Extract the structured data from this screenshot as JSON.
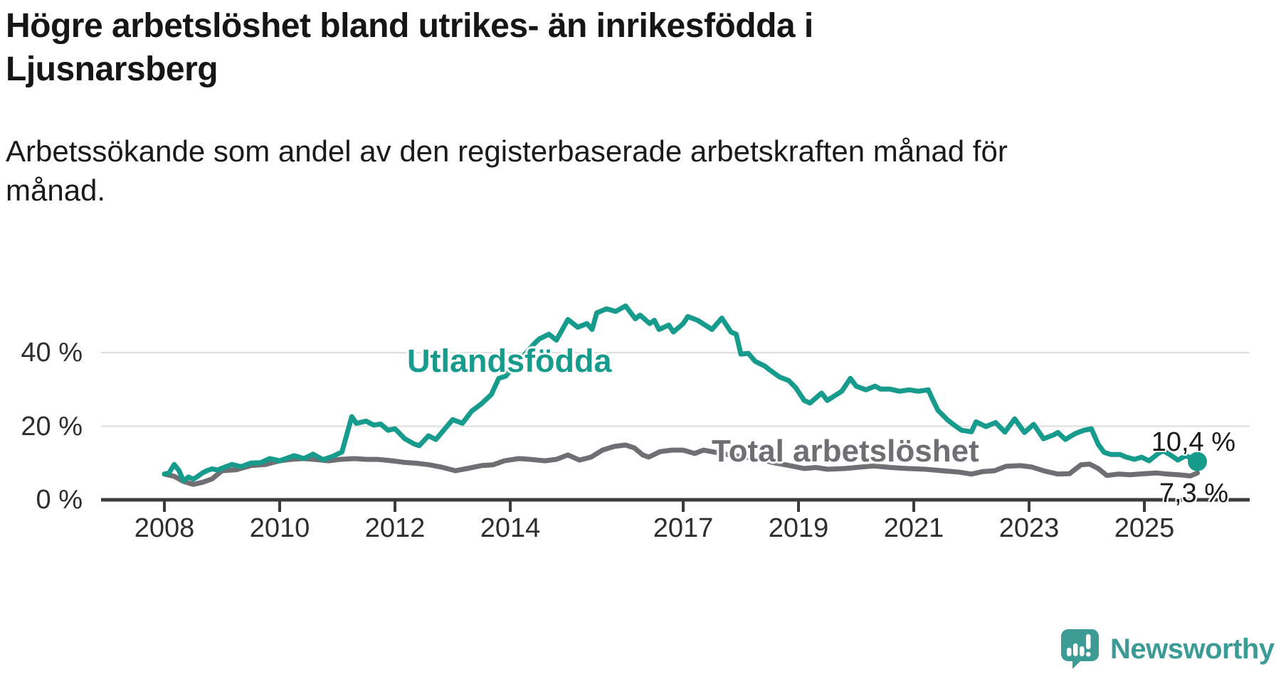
{
  "title": {
    "line1": "Högre arbetslöshet bland utrikes- än inrikesfödda i",
    "line2": "Ljusnarsberg"
  },
  "subtitle": {
    "line1": "Arbetssökande som andel av den registerbaserade arbetskraften månad för",
    "line2": "månad."
  },
  "branding": {
    "name": "Newsworthy",
    "icon": "speech-bubble-bar-chart-icon",
    "color": "#3c9c95"
  },
  "chart_data": {
    "type": "line",
    "title": "Högre arbetslöshet bland utrikes- än inrikesfödda i Ljusnarsberg",
    "xlabel": "",
    "ylabel": "Arbetssökande som andel av den registerbaserade arbetskraften",
    "unit": "%",
    "grid": "horizontal",
    "legend": "inline-labels",
    "x_range": [
      2007.9,
      2026.3
    ],
    "y_range": [
      0,
      56
    ],
    "x_axis": {
      "ticks": [
        {
          "value": 2008,
          "label": "2008"
        },
        {
          "value": 2010,
          "label": "2010"
        },
        {
          "value": 2012,
          "label": "2012"
        },
        {
          "value": 2014,
          "label": "2014"
        },
        {
          "value": 2017,
          "label": "2017"
        },
        {
          "value": 2019,
          "label": "2019"
        },
        {
          "value": 2021,
          "label": "2021"
        },
        {
          "value": 2023,
          "label": "2023"
        },
        {
          "value": 2025,
          "label": "2025"
        }
      ]
    },
    "y_axis": {
      "ticks": [
        {
          "value": 0,
          "label": "0 %"
        },
        {
          "value": 20,
          "label": "20 %"
        },
        {
          "value": 40,
          "label": "40 %"
        }
      ]
    },
    "series": [
      {
        "name": "Utlandsfödda",
        "color": "#169b8d",
        "end_label": "10,4 %",
        "end_value": 10.4,
        "end_dot": true,
        "points": [
          [
            2008.0,
            7.0
          ],
          [
            2008.08,
            7.3
          ],
          [
            2008.17,
            9.6
          ],
          [
            2008.25,
            8.0
          ],
          [
            2008.33,
            5.2
          ],
          [
            2008.42,
            6.2
          ],
          [
            2008.5,
            5.6
          ],
          [
            2008.58,
            6.4
          ],
          [
            2008.67,
            7.4
          ],
          [
            2008.75,
            8.0
          ],
          [
            2008.83,
            8.4
          ],
          [
            2008.92,
            8.1
          ],
          [
            2009.0,
            8.6
          ],
          [
            2009.17,
            9.6
          ],
          [
            2009.33,
            9.0
          ],
          [
            2009.5,
            10.0
          ],
          [
            2009.67,
            10.1
          ],
          [
            2009.83,
            11.2
          ],
          [
            2010.0,
            10.6
          ],
          [
            2010.25,
            12.0
          ],
          [
            2010.42,
            11.2
          ],
          [
            2010.58,
            12.4
          ],
          [
            2010.75,
            10.9
          ],
          [
            2010.92,
            11.8
          ],
          [
            2011.08,
            13.0
          ],
          [
            2011.25,
            22.6
          ],
          [
            2011.33,
            20.8
          ],
          [
            2011.5,
            21.4
          ],
          [
            2011.63,
            20.3
          ],
          [
            2011.75,
            20.6
          ],
          [
            2011.88,
            18.9
          ],
          [
            2012.0,
            19.3
          ],
          [
            2012.17,
            16.6
          ],
          [
            2012.33,
            15.2
          ],
          [
            2012.42,
            14.7
          ],
          [
            2012.58,
            17.4
          ],
          [
            2012.71,
            16.4
          ],
          [
            2013.0,
            21.8
          ],
          [
            2013.17,
            20.8
          ],
          [
            2013.33,
            24.1
          ],
          [
            2013.5,
            26.1
          ],
          [
            2013.67,
            28.6
          ],
          [
            2013.8,
            33.0
          ],
          [
            2013.92,
            33.6
          ],
          [
            2014.08,
            36.5
          ],
          [
            2014.25,
            39.5
          ],
          [
            2014.42,
            42.5
          ],
          [
            2014.5,
            43.7
          ],
          [
            2014.67,
            45.0
          ],
          [
            2014.8,
            43.4
          ],
          [
            2015.0,
            49.0
          ],
          [
            2015.17,
            46.9
          ],
          [
            2015.33,
            47.9
          ],
          [
            2015.42,
            46.3
          ],
          [
            2015.5,
            50.8
          ],
          [
            2015.67,
            51.9
          ],
          [
            2015.83,
            51.2
          ],
          [
            2016.0,
            52.7
          ],
          [
            2016.17,
            49.2
          ],
          [
            2016.25,
            50.2
          ],
          [
            2016.42,
            47.9
          ],
          [
            2016.5,
            48.8
          ],
          [
            2016.58,
            46.3
          ],
          [
            2016.75,
            47.5
          ],
          [
            2016.83,
            45.6
          ],
          [
            2017.0,
            47.9
          ],
          [
            2017.08,
            49.8
          ],
          [
            2017.25,
            48.8
          ],
          [
            2017.5,
            46.3
          ],
          [
            2017.67,
            49.4
          ],
          [
            2017.83,
            45.6
          ],
          [
            2017.92,
            45.0
          ],
          [
            2018.0,
            39.6
          ],
          [
            2018.13,
            39.8
          ],
          [
            2018.25,
            37.6
          ],
          [
            2018.42,
            36.3
          ],
          [
            2018.5,
            35.3
          ],
          [
            2018.67,
            33.4
          ],
          [
            2018.83,
            32.4
          ],
          [
            2018.95,
            30.5
          ],
          [
            2019.1,
            27.0
          ],
          [
            2019.2,
            26.3
          ],
          [
            2019.4,
            29.0
          ],
          [
            2019.5,
            27.0
          ],
          [
            2019.6,
            28.0
          ],
          [
            2019.75,
            29.5
          ],
          [
            2019.9,
            33.0
          ],
          [
            2020.0,
            30.9
          ],
          [
            2020.17,
            29.9
          ],
          [
            2020.33,
            30.9
          ],
          [
            2020.42,
            30.1
          ],
          [
            2020.58,
            30.1
          ],
          [
            2020.75,
            29.5
          ],
          [
            2020.92,
            29.9
          ],
          [
            2021.08,
            29.5
          ],
          [
            2021.25,
            29.9
          ],
          [
            2021.33,
            27.2
          ],
          [
            2021.42,
            24.3
          ],
          [
            2021.58,
            21.8
          ],
          [
            2021.7,
            20.3
          ],
          [
            2021.83,
            18.9
          ],
          [
            2022.0,
            18.5
          ],
          [
            2022.08,
            21.2
          ],
          [
            2022.25,
            19.9
          ],
          [
            2022.42,
            21.0
          ],
          [
            2022.58,
            18.4
          ],
          [
            2022.75,
            22.0
          ],
          [
            2022.92,
            18.3
          ],
          [
            2023.08,
            20.5
          ],
          [
            2023.25,
            16.6
          ],
          [
            2023.42,
            17.6
          ],
          [
            2023.5,
            18.3
          ],
          [
            2023.63,
            16.4
          ],
          [
            2023.8,
            18.0
          ],
          [
            2023.95,
            18.9
          ],
          [
            2024.08,
            19.3
          ],
          [
            2024.2,
            15.1
          ],
          [
            2024.3,
            12.9
          ],
          [
            2024.42,
            12.3
          ],
          [
            2024.58,
            12.3
          ],
          [
            2024.67,
            11.7
          ],
          [
            2024.83,
            11.0
          ],
          [
            2024.95,
            11.6
          ],
          [
            2025.08,
            10.6
          ],
          [
            2025.25,
            12.7
          ],
          [
            2025.33,
            13.3
          ],
          [
            2025.45,
            12.2
          ],
          [
            2025.58,
            10.8
          ],
          [
            2025.72,
            12.0
          ],
          [
            2025.92,
            10.4
          ]
        ]
      },
      {
        "name": "Total arbetslöshet",
        "color": "#6f6f73",
        "end_label": "7,3 %",
        "end_value": 7.3,
        "end_dot": false,
        "points": [
          [
            2008.0,
            7.0
          ],
          [
            2008.17,
            6.4
          ],
          [
            2008.33,
            5.0
          ],
          [
            2008.5,
            4.2
          ],
          [
            2008.67,
            4.8
          ],
          [
            2008.83,
            5.7
          ],
          [
            2009.0,
            7.9
          ],
          [
            2009.25,
            8.2
          ],
          [
            2009.5,
            9.3
          ],
          [
            2009.75,
            9.6
          ],
          [
            2010.0,
            10.6
          ],
          [
            2010.2,
            11.0
          ],
          [
            2010.4,
            11.2
          ],
          [
            2010.6,
            11.0
          ],
          [
            2010.85,
            10.6
          ],
          [
            2011.05,
            11.0
          ],
          [
            2011.3,
            11.2
          ],
          [
            2011.5,
            11.0
          ],
          [
            2011.7,
            11.0
          ],
          [
            2011.95,
            10.6
          ],
          [
            2012.15,
            10.2
          ],
          [
            2012.4,
            9.9
          ],
          [
            2012.6,
            9.5
          ],
          [
            2012.8,
            8.9
          ],
          [
            2013.05,
            7.9
          ],
          [
            2013.25,
            8.5
          ],
          [
            2013.5,
            9.3
          ],
          [
            2013.7,
            9.5
          ],
          [
            2013.9,
            10.6
          ],
          [
            2014.15,
            11.2
          ],
          [
            2014.35,
            11.0
          ],
          [
            2014.6,
            10.6
          ],
          [
            2014.8,
            11.0
          ],
          [
            2015.0,
            12.2
          ],
          [
            2015.2,
            10.8
          ],
          [
            2015.4,
            11.6
          ],
          [
            2015.6,
            13.5
          ],
          [
            2015.8,
            14.5
          ],
          [
            2016.0,
            14.9
          ],
          [
            2016.15,
            14.1
          ],
          [
            2016.3,
            12.2
          ],
          [
            2016.4,
            11.6
          ],
          [
            2016.6,
            13.1
          ],
          [
            2016.8,
            13.5
          ],
          [
            2017.0,
            13.5
          ],
          [
            2017.2,
            12.6
          ],
          [
            2017.35,
            13.5
          ],
          [
            2017.6,
            12.8
          ],
          [
            2017.8,
            12.2
          ],
          [
            2018.0,
            11.8
          ],
          [
            2018.3,
            11.0
          ],
          [
            2018.6,
            10.0
          ],
          [
            2018.85,
            9.3
          ],
          [
            2019.1,
            8.5
          ],
          [
            2019.3,
            8.8
          ],
          [
            2019.5,
            8.3
          ],
          [
            2019.8,
            8.5
          ],
          [
            2020.0,
            8.8
          ],
          [
            2020.3,
            9.2
          ],
          [
            2020.6,
            8.8
          ],
          [
            2020.9,
            8.5
          ],
          [
            2021.2,
            8.3
          ],
          [
            2021.5,
            7.9
          ],
          [
            2021.8,
            7.5
          ],
          [
            2022.0,
            7.0
          ],
          [
            2022.2,
            7.7
          ],
          [
            2022.4,
            7.9
          ],
          [
            2022.6,
            9.1
          ],
          [
            2022.85,
            9.3
          ],
          [
            2023.05,
            8.9
          ],
          [
            2023.25,
            7.9
          ],
          [
            2023.5,
            7.0
          ],
          [
            2023.7,
            7.1
          ],
          [
            2023.9,
            9.5
          ],
          [
            2024.05,
            9.7
          ],
          [
            2024.2,
            8.5
          ],
          [
            2024.35,
            6.6
          ],
          [
            2024.55,
            7.0
          ],
          [
            2024.75,
            6.8
          ],
          [
            2025.0,
            7.1
          ],
          [
            2025.2,
            7.3
          ],
          [
            2025.4,
            7.0
          ],
          [
            2025.6,
            6.8
          ],
          [
            2025.8,
            6.5
          ],
          [
            2025.92,
            7.3
          ]
        ]
      }
    ],
    "style": {
      "gridline_color": "#dddddd",
      "axis_color": "#3c3c3c",
      "line_width": 7
    }
  }
}
